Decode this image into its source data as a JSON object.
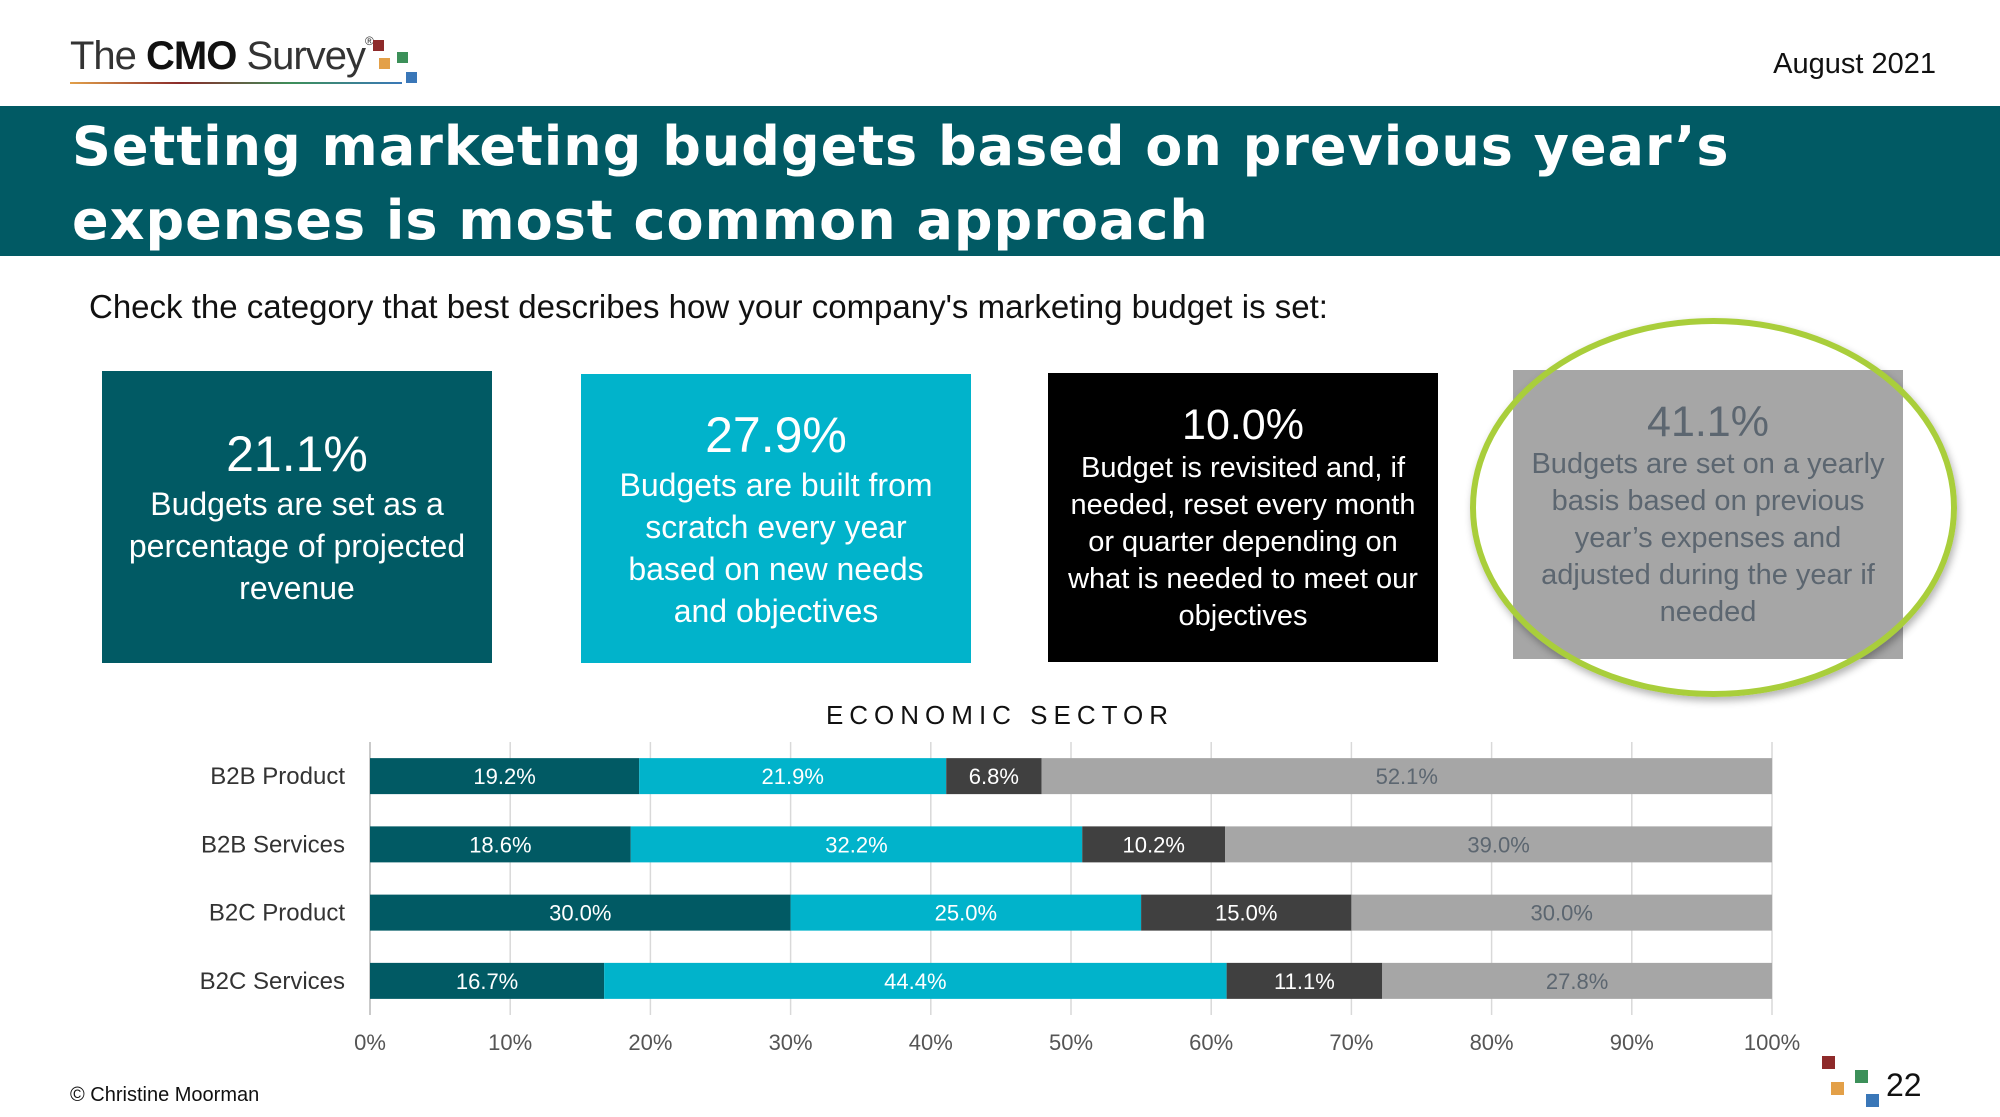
{
  "header": {
    "logo_prefix": "The ",
    "logo_bold": "CMO",
    "logo_suffix": " Survey",
    "logo_reg": "®",
    "date": "August 2021"
  },
  "banner": {
    "title": "Setting marketing budgets based on previous year’s expenses is most common approach"
  },
  "question": "Check the category that best describes how your company's marketing budget is set:",
  "boxes": [
    {
      "pct": "21.1%",
      "desc": "Budgets are set as a percentage of projected revenue"
    },
    {
      "pct": "27.9%",
      "desc": "Budgets are built from scratch every year based on new needs and objectives"
    },
    {
      "pct": "10.0%",
      "desc": "Budget is revisited and, if needed, reset every month or quarter depending on what is needed to meet our objectives"
    },
    {
      "pct": "41.1%",
      "desc": "Budgets are set on a yearly basis based on previous year’s expenses and adjusted during the year if needed"
    }
  ],
  "chart_data": {
    "type": "bar",
    "orientation": "horizontal",
    "stacked": true,
    "title": "ECONOMIC SECTOR",
    "categories": [
      "B2B Product",
      "B2B Services",
      "B2C Product",
      "B2C Services"
    ],
    "series": [
      {
        "values": [
          19.2,
          18.6,
          30.0,
          16.7
        ],
        "labels": [
          "19.2%",
          "18.6%",
          "30.0%",
          "16.7%"
        ],
        "color": "#015a64",
        "label_color": "#ffffff"
      },
      {
        "values": [
          21.9,
          32.2,
          25.0,
          44.4
        ],
        "labels": [
          "21.9%",
          "32.2%",
          "25.0%",
          "44.4%"
        ],
        "color": "#01b3cb",
        "label_color": "#ffffff"
      },
      {
        "values": [
          6.8,
          10.2,
          15.0,
          11.1
        ],
        "labels": [
          "6.8%",
          "10.2%",
          "15.0%",
          "11.1%"
        ],
        "color": "#404040",
        "label_color": "#ffffff"
      },
      {
        "values": [
          52.1,
          39.0,
          30.0,
          27.8
        ],
        "labels": [
          "52.1%",
          "39.0%",
          "30.0%",
          "27.8%"
        ],
        "color": "#a6a6a6",
        "label_color": "#5c6670"
      }
    ],
    "xlim": [
      0,
      100
    ],
    "xticks": [
      "0%",
      "10%",
      "20%",
      "30%",
      "40%",
      "50%",
      "60%",
      "70%",
      "80%",
      "90%",
      "100%"
    ],
    "grid": true,
    "legend": "none"
  },
  "footer": {
    "copyright": "© Christine Moorman",
    "page": "22"
  },
  "colors": {
    "teal_dark": "#015a64",
    "teal_light": "#01b3cb",
    "black": "#000000",
    "gray": "#a6a6a6",
    "highlight_ring": "#a9ce3b"
  }
}
